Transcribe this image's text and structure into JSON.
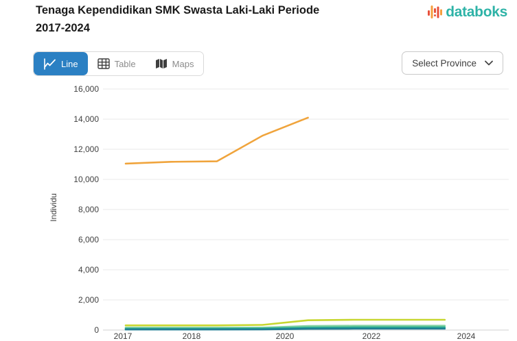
{
  "header": {
    "title_line1": "Tenaga Kependidikan SMK Swasta Laki-Laki Periode",
    "title_line2": "2017-2024",
    "brand": {
      "name": "databoks",
      "text_color": "#2eb3a7",
      "bar_red": "#e8503a",
      "bar_orange": "#f59d3d"
    }
  },
  "toolbar": {
    "tabs": [
      {
        "label": "Line",
        "active": true
      },
      {
        "label": "Table",
        "active": false
      },
      {
        "label": "Maps",
        "active": false
      }
    ],
    "active_tab_color": "#2b80c3",
    "province_dropdown": {
      "label": "Select Province"
    }
  },
  "chart_data": {
    "type": "line",
    "title": "Tenaga Kependidikan SMK Swasta Laki-Laki Periode 2017-2024",
    "xlabel": "",
    "ylabel": "Individu",
    "ylim": [
      0,
      16000
    ],
    "y_tick_step": 2000,
    "y_tick_labels": [
      "0",
      "2,000",
      "4,000",
      "6,000",
      "8,000",
      "10,000",
      "12,000",
      "14,000",
      "16,000"
    ],
    "x_years": [
      2017,
      2018,
      2019,
      2020,
      2021,
      2022,
      2023,
      2024
    ],
    "x_tick_labels": [
      "2017",
      "2018",
      "2020",
      "2022",
      "2024"
    ],
    "grid": "horizontal-only",
    "legend_position": "none",
    "series": [
      {
        "name": "orange",
        "color": "#f0a43c",
        "years": [
          2017,
          2018,
          2019,
          2020,
          2021
        ],
        "values": [
          11050,
          11170,
          11200,
          12900,
          14100
        ]
      },
      {
        "name": "lime",
        "color": "#c6d62f",
        "years": [
          2017,
          2018,
          2019,
          2020,
          2021,
          2022,
          2023,
          2024
        ],
        "values": [
          310,
          310,
          310,
          340,
          650,
          680,
          680,
          680
        ]
      },
      {
        "name": "mint",
        "color": "#82d2a2",
        "years": [
          2017,
          2018,
          2019,
          2020,
          2021,
          2022,
          2023,
          2024
        ],
        "values": [
          160,
          160,
          160,
          165,
          270,
          285,
          285,
          285
        ]
      },
      {
        "name": "teal",
        "color": "#2bab93",
        "years": [
          2017,
          2018,
          2019,
          2020,
          2021,
          2022,
          2023,
          2024
        ],
        "values": [
          95,
          95,
          95,
          100,
          165,
          175,
          175,
          175
        ]
      },
      {
        "name": "dark-teal",
        "color": "#1f7d93",
        "years": [
          2017,
          2018,
          2019,
          2020,
          2021,
          2022,
          2023,
          2024
        ],
        "values": [
          35,
          35,
          35,
          40,
          80,
          90,
          90,
          90
        ]
      }
    ]
  }
}
